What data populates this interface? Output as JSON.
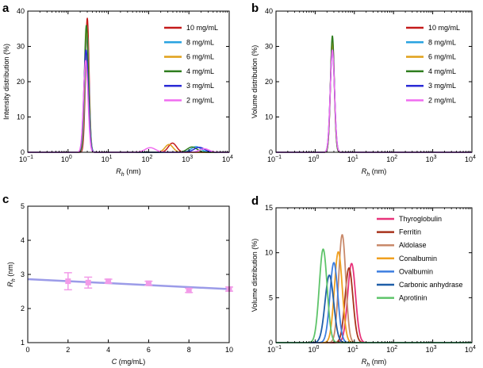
{
  "chart_data": [
    {
      "panel": "a",
      "type": "line",
      "ylabel": "Intensity distribution (%)",
      "xlabel_main": "R",
      "xlabel_sub": "h",
      "xlabel_unit": " (nm)",
      "xscale": "log",
      "xlim": [
        0.1,
        10000
      ],
      "ylim": [
        0,
        40
      ],
      "xticks": [
        {
          "v": 0.1,
          "b": "10",
          "e": "−1"
        },
        {
          "v": 1,
          "b": "10",
          "e": "0"
        },
        {
          "v": 10,
          "b": "10",
          "e": "1"
        },
        {
          "v": 100,
          "b": "10",
          "e": "2"
        },
        {
          "v": 1000,
          "b": "10",
          "e": "3"
        },
        {
          "v": 10000,
          "b": "10",
          "e": "4"
        }
      ],
      "yticks": [
        "0",
        "10",
        "20",
        "30",
        "40"
      ],
      "legend_position": "top-right",
      "series": [
        {
          "name": "10 mg/mL",
          "color": "#c41a1a",
          "peaks": [
            {
              "x": 3.0,
              "h": 38,
              "w": 0.045
            },
            {
              "x": 390,
              "h": 2.6,
              "w": 0.1
            }
          ]
        },
        {
          "name": "8 mg/mL",
          "color": "#29a3e0",
          "peaks": [
            {
              "x": 2.95,
              "h": 34,
              "w": 0.05
            },
            {
              "x": 1500,
              "h": 1.6,
              "w": 0.12
            }
          ]
        },
        {
          "name": "6 mg/mL",
          "color": "#e0a019",
          "peaks": [
            {
              "x": 2.9,
              "h": 35,
              "w": 0.05
            },
            {
              "x": 320,
              "h": 2.2,
              "w": 0.1
            }
          ]
        },
        {
          "name": "4 mg/mL",
          "color": "#2e7d1e",
          "peaks": [
            {
              "x": 2.85,
              "h": 36,
              "w": 0.05
            },
            {
              "x": 1200,
              "h": 1.5,
              "w": 0.12
            }
          ]
        },
        {
          "name": "3 mg/mL",
          "color": "#2b2bd6",
          "peaks": [
            {
              "x": 2.8,
              "h": 29,
              "w": 0.055
            },
            {
              "x": 1800,
              "h": 1.4,
              "w": 0.13
            }
          ]
        },
        {
          "name": "2 mg/mL",
          "color": "#f06cf0",
          "peaks": [
            {
              "x": 2.75,
              "h": 26,
              "w": 0.055
            },
            {
              "x": 110,
              "h": 1.3,
              "w": 0.13
            },
            {
              "x": 2400,
              "h": 1.0,
              "w": 0.12
            }
          ]
        }
      ]
    },
    {
      "panel": "b",
      "type": "line",
      "ylabel": "Volume distribution (%)",
      "xlabel_main": "R",
      "xlabel_sub": "h",
      "xlabel_unit": " (nm)",
      "xscale": "log",
      "xlim": [
        0.1,
        10000
      ],
      "ylim": [
        0,
        40
      ],
      "xticks": [
        {
          "v": 0.1,
          "b": "10",
          "e": "−1"
        },
        {
          "v": 1,
          "b": "10",
          "e": "0"
        },
        {
          "v": 10,
          "b": "10",
          "e": "1"
        },
        {
          "v": 100,
          "b": "10",
          "e": "2"
        },
        {
          "v": 1000,
          "b": "10",
          "e": "3"
        },
        {
          "v": 10000,
          "b": "10",
          "e": "4"
        }
      ],
      "yticks": [
        "0",
        "10",
        "20",
        "30",
        "40"
      ],
      "legend_position": "top-right",
      "series": [
        {
          "name": "10 mg/mL",
          "color": "#c41a1a",
          "peaks": [
            {
              "x": 2.75,
              "h": 32,
              "w": 0.05
            }
          ]
        },
        {
          "name": "8 mg/mL",
          "color": "#29a3e0",
          "peaks": [
            {
              "x": 2.75,
              "h": 31,
              "w": 0.05
            }
          ]
        },
        {
          "name": "6 mg/mL",
          "color": "#e0a019",
          "peaks": [
            {
              "x": 2.75,
              "h": 31,
              "w": 0.05
            }
          ]
        },
        {
          "name": "4 mg/mL",
          "color": "#2e7d1e",
          "peaks": [
            {
              "x": 2.75,
              "h": 33,
              "w": 0.05
            }
          ]
        },
        {
          "name": "3 mg/mL",
          "color": "#2b2bd6",
          "peaks": [
            {
              "x": 2.75,
              "h": 29,
              "w": 0.055
            }
          ]
        },
        {
          "name": "2 mg/mL",
          "color": "#f06cf0",
          "peaks": [
            {
              "x": 2.75,
              "h": 29,
              "w": 0.055
            }
          ]
        }
      ]
    },
    {
      "panel": "c",
      "type": "scatter",
      "xlabel_main": "C",
      "xlabel_unit": " (mg/mL)",
      "ylabel_main": "R",
      "ylabel_sub": "h",
      "ylabel_unit": " (nm)",
      "xlim": [
        0,
        10
      ],
      "ylim": [
        1,
        5
      ],
      "xticks": [
        "0",
        "2",
        "4",
        "6",
        "8",
        "10"
      ],
      "yticks": [
        "1",
        "2",
        "3",
        "4",
        "5"
      ],
      "marker_color": "#f29be8",
      "line_color": "#9b9be8",
      "points": [
        {
          "x": 2,
          "y": 2.8,
          "err": 0.25
        },
        {
          "x": 3,
          "y": 2.76,
          "err": 0.16
        },
        {
          "x": 4,
          "y": 2.8,
          "err": 0.06
        },
        {
          "x": 6,
          "y": 2.74,
          "err": 0.06
        },
        {
          "x": 8,
          "y": 2.53,
          "err": 0.06
        },
        {
          "x": 10,
          "y": 2.57,
          "err": 0.06
        }
      ],
      "fit": {
        "x": [
          0,
          10
        ],
        "y": [
          2.86,
          2.57
        ]
      }
    },
    {
      "panel": "d",
      "type": "line",
      "ylabel": "Volume distribution (%)",
      "xlabel_main": "R",
      "xlabel_sub": "h",
      "xlabel_unit": " (nm)",
      "xscale": "log",
      "xlim": [
        0.1,
        10000
      ],
      "ylim": [
        0,
        15
      ],
      "xticks": [
        {
          "v": 0.1,
          "b": "10",
          "e": "−1"
        },
        {
          "v": 1,
          "b": "10",
          "e": "0"
        },
        {
          "v": 10,
          "b": "10",
          "e": "1"
        },
        {
          "v": 100,
          "b": "10",
          "e": "2"
        },
        {
          "v": 1000,
          "b": "10",
          "e": "3"
        },
        {
          "v": 10000,
          "b": "10",
          "e": "4"
        }
      ],
      "yticks": [
        "0",
        "5",
        "10",
        "15"
      ],
      "legend_position": "top-right",
      "series": [
        {
          "name": "Thyroglobulin",
          "color": "#e8337a",
          "peaks": [
            {
              "x": 8.5,
              "h": 8.8,
              "w": 0.1
            }
          ]
        },
        {
          "name": "Ferritin",
          "color": "#a8331c",
          "peaks": [
            {
              "x": 7.3,
              "h": 8.3,
              "w": 0.1
            }
          ]
        },
        {
          "name": "Aldolase",
          "color": "#c9896a",
          "peaks": [
            {
              "x": 4.9,
              "h": 12.0,
              "w": 0.09
            }
          ]
        },
        {
          "name": "Conalbumin",
          "color": "#f0a020",
          "peaks": [
            {
              "x": 3.9,
              "h": 10.1,
              "w": 0.1
            }
          ]
        },
        {
          "name": "Ovalbumin",
          "color": "#3d7ee0",
          "peaks": [
            {
              "x": 3.0,
              "h": 8.9,
              "w": 0.1
            }
          ]
        },
        {
          "name": "Carbonic anhydrase",
          "color": "#1f5ea8",
          "peaks": [
            {
              "x": 2.3,
              "h": 7.5,
              "w": 0.11
            }
          ]
        },
        {
          "name": "Aprotinin",
          "color": "#5ec46a",
          "peaks": [
            {
              "x": 1.6,
              "h": 10.4,
              "w": 0.1
            }
          ]
        }
      ]
    }
  ]
}
